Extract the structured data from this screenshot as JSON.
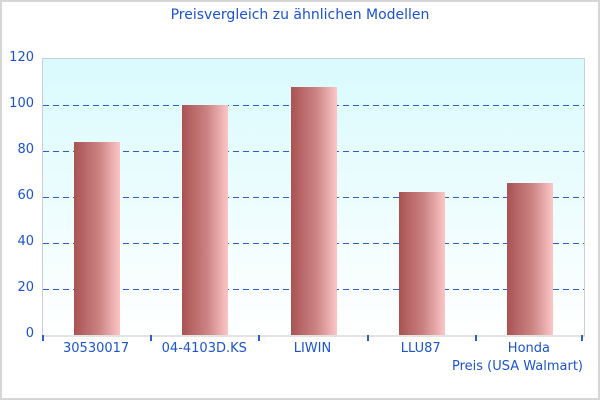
{
  "chart_data": {
    "type": "bar",
    "title": "Preisvergleich zu ähnlichen Modellen",
    "categories": [
      "30530017",
      "04-4103D.KS",
      "LIWIN",
      "LLU87",
      "Honda"
    ],
    "values": [
      84,
      100,
      108,
      62,
      66
    ],
    "xlabel": "Preis (USA Walmart)",
    "ylabel": "",
    "ylim": [
      0,
      120
    ],
    "yticks": [
      0,
      20,
      40,
      60,
      80,
      100,
      120
    ],
    "grid": "horizontal-dashed",
    "legend": "none",
    "colors": {
      "title_text": "#1a53cd",
      "axis_text": "#1b54cd",
      "gridline": "#2e5fc4",
      "tick": "#2e5fc4",
      "bar_gradient_left": "#aa5252",
      "bar_gradient_right": "#fcc6c6",
      "plot_bg_top": "#d9fafd",
      "plot_bg_bottom": "#ffffff",
      "plot_border": "#c9ccd9",
      "outer_border": "#d6d6d6"
    }
  }
}
